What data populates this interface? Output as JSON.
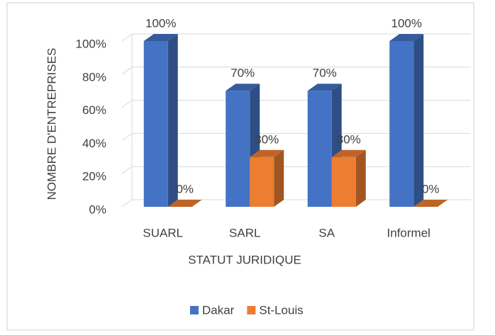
{
  "chart_data": {
    "type": "bar3d",
    "categories": [
      "SUARL",
      "SARL",
      "SA",
      "Informel"
    ],
    "series": [
      {
        "name": "Dakar",
        "color": "#4472c4",
        "values": [
          100,
          70,
          70,
          100
        ],
        "value_labels": [
          "100%",
          "70%",
          "70%",
          "100%"
        ]
      },
      {
        "name": "St-Louis",
        "color": "#ed7d31",
        "values": [
          0,
          30,
          30,
          0
        ],
        "value_labels": [
          "0%",
          "30%",
          "30%",
          "0%"
        ]
      }
    ],
    "ylim": [
      0,
      100
    ],
    "yticks": [
      {
        "value": 0,
        "label": "0%"
      },
      {
        "value": 20,
        "label": "20%"
      },
      {
        "value": 40,
        "label": "40%"
      },
      {
        "value": 60,
        "label": "60%"
      },
      {
        "value": 80,
        "label": "80%"
      },
      {
        "value": 100,
        "label": "100%"
      }
    ],
    "xlabel": "STATUT JURIDIQUE",
    "ylabel": "NOMBRE D'ENTREPRISES",
    "grid": true,
    "legend": "bottom"
  }
}
